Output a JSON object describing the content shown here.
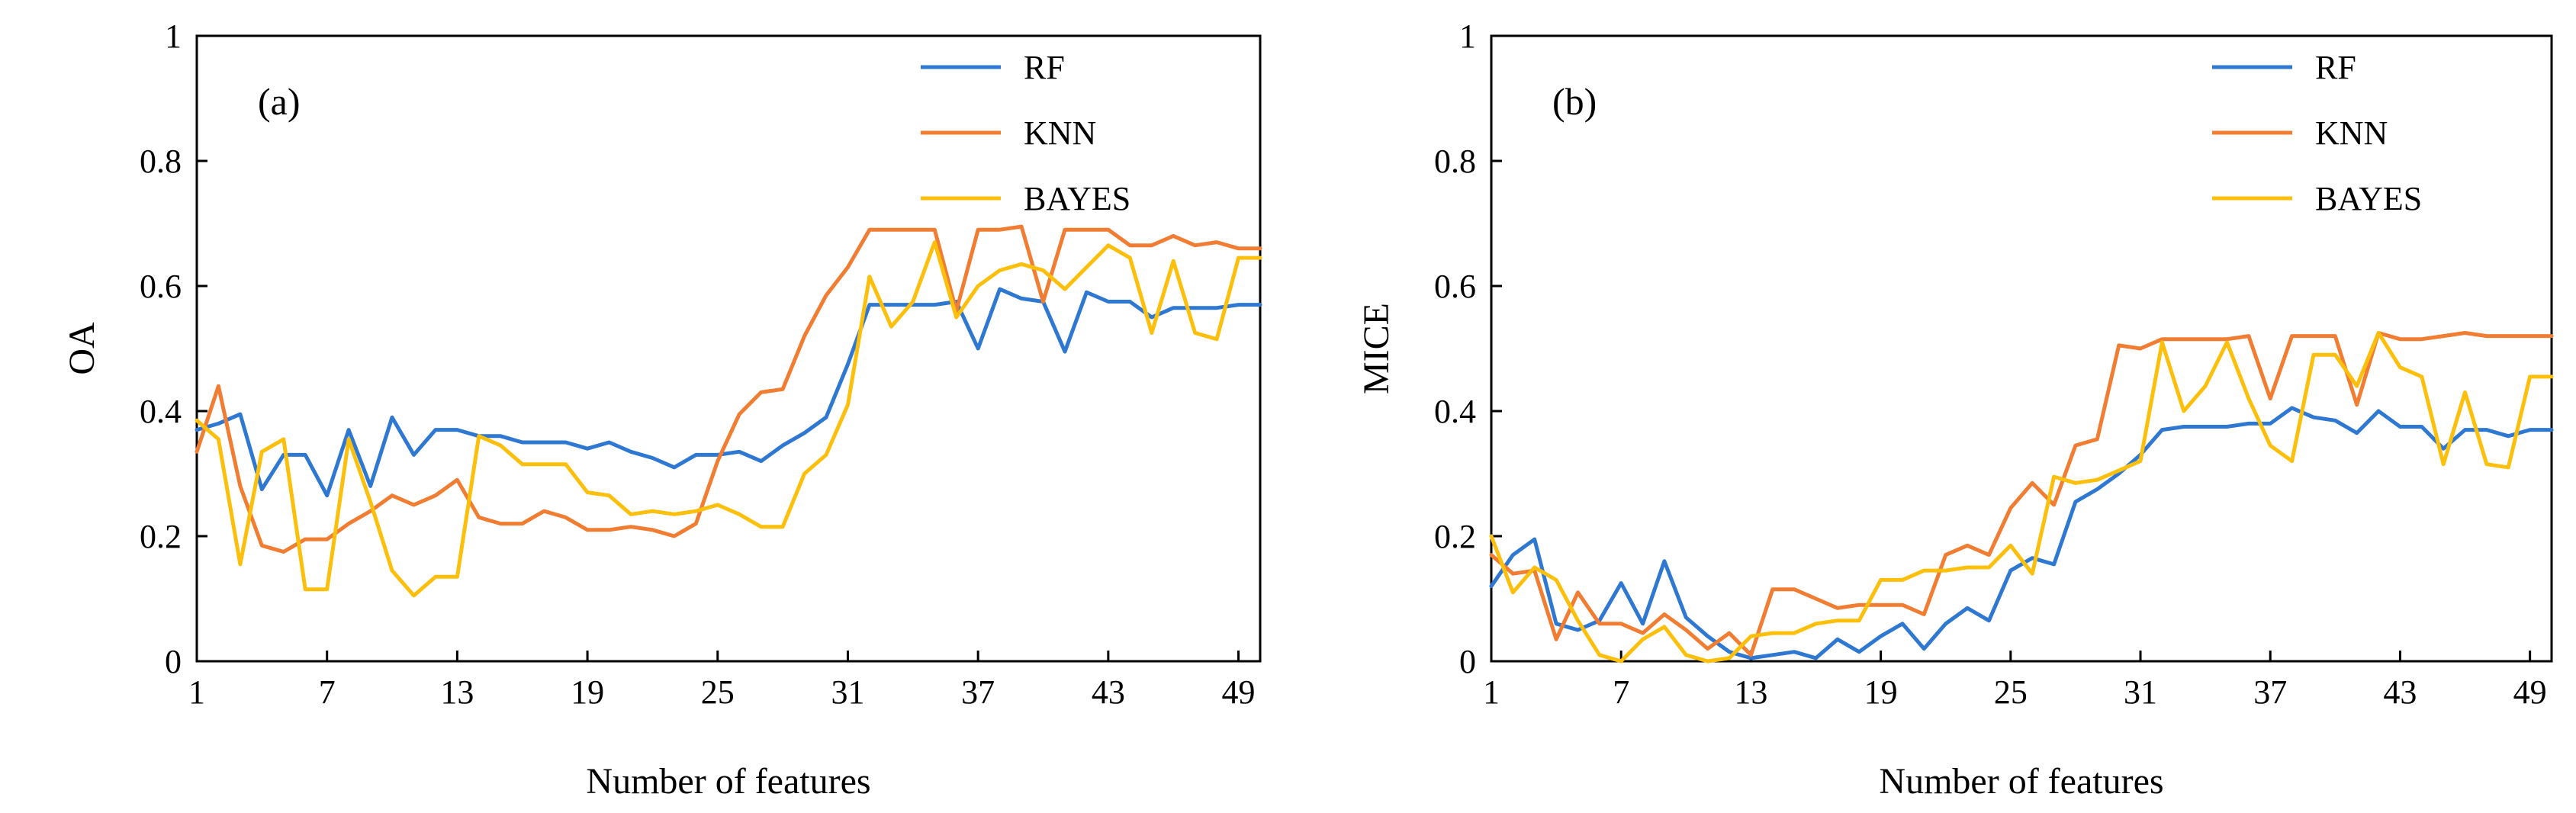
{
  "colors": {
    "RF": "#2E78D2",
    "KNN": "#F07D32",
    "BAYES": "#FCC00C"
  },
  "chart_data": [
    {
      "type": "line",
      "panel_label": "(a)",
      "xlabel": "Number of features",
      "ylabel": "OA",
      "xlim": [
        1,
        50
      ],
      "ylim": [
        0,
        1
      ],
      "xticks": [
        "1",
        "7",
        "13",
        "19",
        "25",
        "31",
        "37",
        "43",
        "49"
      ],
      "yticks": [
        "0",
        "0.2",
        "0.4",
        "0.6",
        "0.8",
        "1"
      ],
      "legend_position": "top-right",
      "series": [
        {
          "name": "RF",
          "values": [
            0.37,
            0.38,
            0.395,
            0.275,
            0.33,
            0.33,
            0.265,
            0.37,
            0.28,
            0.39,
            0.33,
            0.37,
            0.37,
            0.36,
            0.36,
            0.35,
            0.35,
            0.35,
            0.34,
            0.35,
            0.335,
            0.325,
            0.31,
            0.33,
            0.33,
            0.335,
            0.32,
            0.345,
            0.365,
            0.39,
            0.475,
            0.57,
            0.57,
            0.57,
            0.57,
            0.575,
            0.5,
            0.595,
            0.58,
            0.575,
            0.495,
            0.59,
            0.575,
            0.575,
            0.55,
            0.565,
            0.565,
            0.565,
            0.57,
            0.57
          ]
        },
        {
          "name": "KNN",
          "values": [
            0.335,
            0.44,
            0.28,
            0.185,
            0.175,
            0.195,
            0.195,
            0.22,
            0.24,
            0.265,
            0.25,
            0.265,
            0.29,
            0.23,
            0.22,
            0.22,
            0.24,
            0.23,
            0.21,
            0.21,
            0.215,
            0.21,
            0.2,
            0.22,
            0.32,
            0.395,
            0.43,
            0.435,
            0.52,
            0.585,
            0.63,
            0.69,
            0.69,
            0.69,
            0.69,
            0.56,
            0.69,
            0.69,
            0.695,
            0.575,
            0.69,
            0.69,
            0.69,
            0.665,
            0.665,
            0.68,
            0.665,
            0.67,
            0.66,
            0.66
          ]
        },
        {
          "name": "BAYES",
          "values": [
            0.385,
            0.355,
            0.155,
            0.335,
            0.355,
            0.115,
            0.115,
            0.355,
            0.255,
            0.145,
            0.105,
            0.135,
            0.135,
            0.36,
            0.345,
            0.315,
            0.315,
            0.315,
            0.27,
            0.265,
            0.235,
            0.24,
            0.235,
            0.24,
            0.25,
            0.235,
            0.215,
            0.215,
            0.3,
            0.33,
            0.41,
            0.615,
            0.535,
            0.575,
            0.67,
            0.55,
            0.6,
            0.625,
            0.635,
            0.625,
            0.595,
            0.63,
            0.665,
            0.645,
            0.525,
            0.64,
            0.525,
            0.515,
            0.645,
            0.645
          ]
        }
      ]
    },
    {
      "type": "line",
      "panel_label": "(b)",
      "xlabel": "Number of features",
      "ylabel": "MICE",
      "xlim": [
        1,
        50
      ],
      "ylim": [
        0,
        1
      ],
      "xticks": [
        "1",
        "7",
        "13",
        "19",
        "25",
        "31",
        "37",
        "43",
        "49"
      ],
      "yticks": [
        "0",
        "0.2",
        "0.4",
        "0.6",
        "0.8",
        "1"
      ],
      "legend_position": "top-right",
      "series": [
        {
          "name": "RF",
          "values": [
            0.12,
            0.17,
            0.195,
            0.06,
            0.05,
            0.065,
            0.125,
            0.06,
            0.16,
            0.07,
            0.04,
            0.015,
            0.005,
            0.01,
            0.015,
            0.005,
            0.035,
            0.015,
            0.04,
            0.06,
            0.02,
            0.06,
            0.085,
            0.065,
            0.145,
            0.165,
            0.155,
            0.255,
            0.275,
            0.3,
            0.33,
            0.37,
            0.375,
            0.375,
            0.375,
            0.38,
            0.38,
            0.405,
            0.39,
            0.385,
            0.365,
            0.4,
            0.375,
            0.375,
            0.34,
            0.37,
            0.37,
            0.36,
            0.37,
            0.37
          ]
        },
        {
          "name": "KNN",
          "values": [
            0.17,
            0.14,
            0.145,
            0.035,
            0.11,
            0.06,
            0.06,
            0.045,
            0.075,
            0.05,
            0.02,
            0.045,
            0.01,
            0.115,
            0.115,
            0.1,
            0.085,
            0.09,
            0.09,
            0.09,
            0.075,
            0.17,
            0.185,
            0.17,
            0.245,
            0.285,
            0.25,
            0.345,
            0.355,
            0.505,
            0.5,
            0.515,
            0.515,
            0.515,
            0.515,
            0.52,
            0.42,
            0.52,
            0.52,
            0.52,
            0.41,
            0.525,
            0.515,
            0.515,
            0.52,
            0.525,
            0.52,
            0.52,
            0.52,
            0.52
          ]
        },
        {
          "name": "BAYES",
          "values": [
            0.2,
            0.11,
            0.15,
            0.13,
            0.065,
            0.01,
            0.0,
            0.035,
            0.055,
            0.01,
            0.0,
            0.005,
            0.04,
            0.045,
            0.045,
            0.06,
            0.065,
            0.065,
            0.13,
            0.13,
            0.145,
            0.145,
            0.15,
            0.15,
            0.185,
            0.14,
            0.295,
            0.285,
            0.29,
            0.305,
            0.32,
            0.51,
            0.4,
            0.44,
            0.51,
            0.42,
            0.345,
            0.32,
            0.49,
            0.49,
            0.44,
            0.525,
            0.47,
            0.455,
            0.315,
            0.43,
            0.315,
            0.31,
            0.455,
            0.455
          ]
        }
      ]
    }
  ]
}
